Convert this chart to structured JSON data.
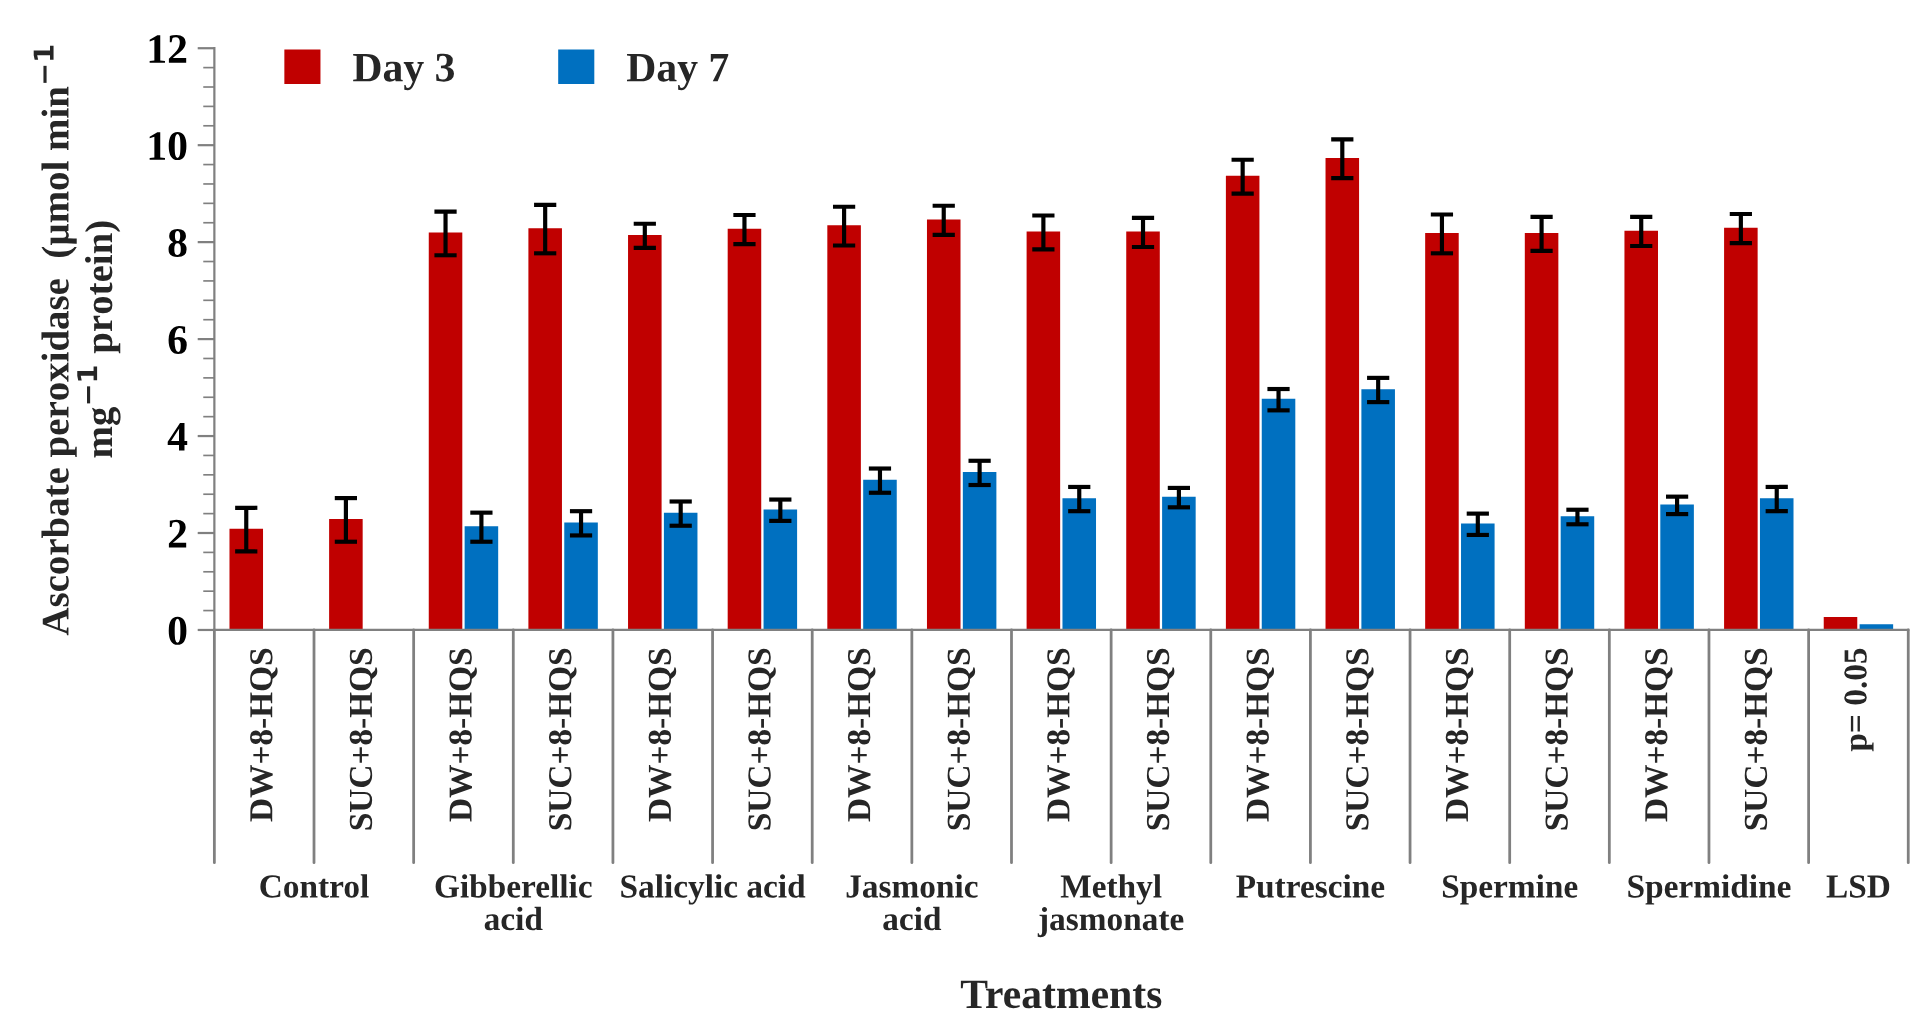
{
  "chart_data": {
    "type": "bar",
    "categories": [
      "DW+8-HQS",
      "SUC+8-HQS",
      "DW+8-HQS",
      "SUC+8-HQS",
      "DW+8-HQS",
      "SUC+8-HQS",
      "DW+8-HQS",
      "SUC+8-HQS",
      "DW+8-HQS",
      "SUC+8-HQS",
      "DW+8-HQS",
      "SUC+8-HQS",
      "DW+8-HQS",
      "SUC+8-HQS",
      "DW+8-HQS",
      "SUC+8-HQS",
      "p= 0.05"
    ],
    "series": [
      {
        "name": "Day 3",
        "color": "#c00000",
        "values": [
          2.07,
          2.27,
          8.18,
          8.27,
          8.13,
          8.26,
          8.33,
          8.45,
          8.2,
          8.2,
          9.35,
          9.72,
          8.17,
          8.17,
          8.22,
          8.28,
          0.25
        ],
        "errors": [
          0.45,
          0.45,
          0.45,
          0.5,
          0.25,
          0.3,
          0.4,
          0.3,
          0.35,
          0.3,
          0.35,
          0.4,
          0.4,
          0.35,
          0.3,
          0.3,
          null
        ]
      },
      {
        "name": "Day 7",
        "color": "#0070c0",
        "values": [
          0,
          0,
          2.12,
          2.2,
          2.4,
          2.47,
          3.08,
          3.24,
          2.7,
          2.73,
          4.75,
          4.95,
          2.18,
          2.33,
          2.57,
          2.7,
          0.1
        ],
        "errors": [
          null,
          null,
          0.3,
          0.25,
          0.25,
          0.22,
          0.25,
          0.25,
          0.25,
          0.2,
          0.22,
          0.25,
          0.22,
          0.15,
          0.18,
          0.25,
          null
        ]
      }
    ],
    "xlabel": "Treatments",
    "ylabel": "Ascorbate peroxidase  (µmol min$^{−1}$ mg$^{−1}$ protein)",
    "annotations": [
      "Control",
      "Gibberellic\nacid",
      "Salicylic acid",
      "Jasmonic\nacid",
      "Methyl\njasmonate",
      "Putrescine",
      "Spermine",
      "Spermidine",
      "LSD"
    ],
    "ylim": [
      0,
      12
    ],
    "yticks": [
      0,
      2,
      4,
      6,
      8,
      10,
      12
    ],
    "grid": false,
    "legend": "top left"
  }
}
